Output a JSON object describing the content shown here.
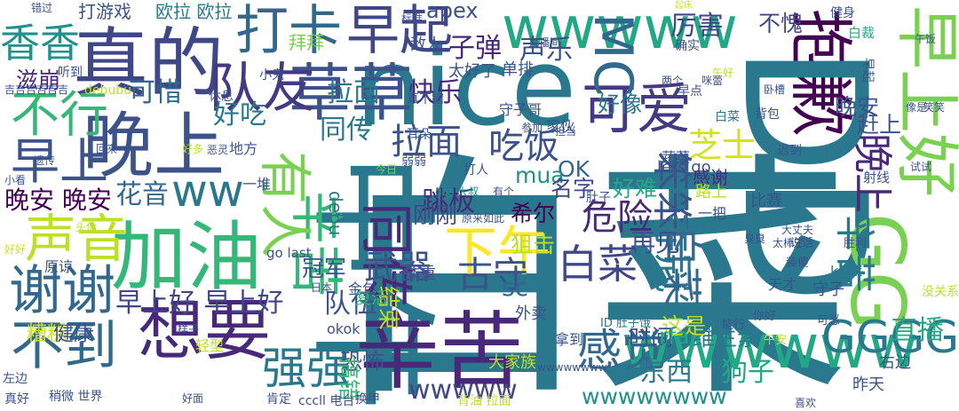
{
  "words": [
    {
      "text": "白菜",
      "color": "#2a788e"
    },
    {
      "text": "中午",
      "color": "#2a788e"
    },
    {
      "text": "nice",
      "color": "#2a788e"
    },
    {
      "text": "辛苦",
      "color": "#482878"
    },
    {
      "text": "真的",
      "color": "#3f4788"
    },
    {
      "text": "晚上",
      "color": "#3b528b"
    },
    {
      "text": "加油",
      "color": "#35b779"
    },
    {
      "text": "想要",
      "color": "#482878"
    },
    {
      "text": "草草",
      "color": "#3b528b"
    },
    {
      "text": "抱歉",
      "color": "#440154"
    },
    {
      "text": "早上好",
      "color": "#7ad151"
    },
    {
      "text": "DD",
      "color": "#2a788e"
    },
    {
      "text": "GG",
      "color": "#7ad151"
    },
    {
      "text": "wwwww",
      "color": "#22a884"
    },
    {
      "text": "wwwwww",
      "color": "#22a884"
    },
    {
      "text": "谢谢",
      "color": "#31688e"
    },
    {
      "text": "声音",
      "color": "#bddf26"
    },
    {
      "text": "不行",
      "color": "#35b779"
    },
    {
      "text": "早上",
      "color": "#3b528b"
    },
    {
      "text": "不到",
      "color": "#31688e"
    },
    {
      "text": "打卡",
      "color": "#31688e"
    },
    {
      "text": "早起",
      "color": "#3f4788"
    },
    {
      "text": "可爱",
      "color": "#443983"
    },
    {
      "text": "下午",
      "color": "#fde725"
    },
    {
      "text": "同传",
      "color": "#482878"
    },
    {
      "text": "辛苦",
      "color": "#35b779"
    },
    {
      "text": "有人",
      "color": "#7ad151"
    },
    {
      "text": "感觉",
      "color": "#31688e"
    },
    {
      "text": "GGGG",
      "color": "#2a788e"
    },
    {
      "text": "芝士",
      "color": "#d2e21b"
    },
    {
      "text": "MC",
      "color": "#31688e"
    },
    {
      "text": "队友",
      "color": "#443983"
    },
    {
      "text": "ww",
      "color": "#2a788e"
    },
    {
      "text": "强强",
      "color": "#2a788e"
    },
    {
      "text": "白菜",
      "color": "#3f4788"
    },
    {
      "text": "笨笨",
      "color": "#3b528b"
    },
    {
      "text": "夺冠",
      "color": "#2a788e"
    },
    {
      "text": "香香",
      "color": "#21918c"
    },
    {
      "text": "白菜",
      "color": "#31688e"
    },
    {
      "text": "辛苦",
      "color": "#2a788e"
    },
    {
      "text": "晚上",
      "color": "#482878"
    },
    {
      "text": "古守",
      "color": "#3b528b"
    },
    {
      "text": "危险",
      "color": "#482878"
    },
    {
      "text": "拉面",
      "color": "#3b528b"
    },
    {
      "text": "吃饭",
      "color": "#3b528b"
    },
    {
      "text": "厉害",
      "color": "#3f4788"
    },
    {
      "text": "快乐",
      "color": "#482878"
    },
    {
      "text": "声乐",
      "color": "#3b528b"
    },
    {
      "text": "子弹",
      "color": "#482878"
    },
    {
      "text": "不愧",
      "color": "#3f4788"
    },
    {
      "text": "可惜",
      "color": "#31688e"
    },
    {
      "text": "好吃",
      "color": "#2a788e"
    },
    {
      "text": "跳板",
      "color": "#482878"
    },
    {
      "text": "武器",
      "color": "#3b528b"
    },
    {
      "text": "早上好 早上好",
      "color": "#3f4788"
    },
    {
      "text": "晚安 晚安",
      "color": "#440154"
    },
    {
      "text": "花音",
      "color": "#31688e"
    },
    {
      "text": "同传",
      "color": "#2a788e"
    },
    {
      "text": "好像",
      "color": "#2a788e"
    },
    {
      "text": "OK",
      "color": "#31688e"
    },
    {
      "text": "mua",
      "color": "#21918c"
    },
    {
      "text": "apex",
      "color": "#3b528b"
    },
    {
      "text": "sc",
      "color": "#31688e"
    },
    {
      "text": "直播",
      "color": "#22a884"
    },
    {
      "text": "队伍",
      "color": "#3b528b"
    },
    {
      "text": "糟糕",
      "color": "#d2e21b"
    },
    {
      "text": "健康",
      "color": "#3b528b"
    },
    {
      "text": "恐怖",
      "color": "#3b528b"
    },
    {
      "text": "搞错",
      "color": "#35b779"
    },
    {
      "text": "狗子",
      "color": "#22a884"
    },
    {
      "text": "东西",
      "color": "#2a788e"
    },
    {
      "text": "再见",
      "color": "#3b528b"
    },
    {
      "text": "好难",
      "color": "#22a884"
    },
    {
      "text": "名字",
      "color": "#3f4788"
    },
    {
      "text": "希尔",
      "color": "#440154"
    },
    {
      "text": "狙击",
      "color": "#bddf26"
    },
    {
      "text": "结束",
      "color": "#bddf26"
    },
    {
      "text": "刚刚",
      "color": "#3f4788"
    },
    {
      "text": "维生素",
      "color": "#2a788e"
    },
    {
      "text": "这是",
      "color": "#bddf26"
    },
    {
      "text": "时间",
      "color": "#3b528b"
    },
    {
      "text": "rfa",
      "color": "#22a884"
    },
    {
      "text": "wwwwwwww",
      "color": "#21918c"
    },
    {
      "text": "wwwww",
      "color": "#3f4788"
    },
    {
      "text": "冠军",
      "color": "#3b528b"
    },
    {
      "text": "滋崩",
      "color": "#482878"
    },
    {
      "text": "晚安",
      "color": "#3b528b"
    },
    {
      "text": "赶上",
      "color": "#3b528b"
    },
    {
      "text": "拉面",
      "color": "#2a788e"
    },
    {
      "text": "拜拜",
      "color": "#7ad151"
    },
    {
      "text": "打游戏",
      "color": "#3b528b"
    },
    {
      "text": "欧拉 欧拉",
      "color": "#2a788e"
    },
    {
      "text": "debu",
      "color": "#2a788e"
    },
    {
      "text": "lets go",
      "color": "#3b528b"
    },
    {
      "text": "感谢",
      "color": "#482878"
    },
    {
      "text": "比赛",
      "color": "#3b528b"
    },
    {
      "text": "右边",
      "color": "#3b528b"
    },
    {
      "text": "昨天",
      "color": "#3b528b"
    },
    {
      "text": "敌人",
      "color": "#3b528b"
    },
    {
      "text": "太好了",
      "color": "#3b528b"
    },
    {
      "text": "单排",
      "color": "#3b528b"
    },
    {
      "text": "金包",
      "color": "#3b528b"
    },
    {
      "text": "体重",
      "color": "#3b528b"
    },
    {
      "text": "复活",
      "color": "#35b779"
    },
    {
      "text": "守子",
      "color": "#3b528b"
    },
    {
      "text": "天才",
      "color": "#3b528b"
    },
    {
      "text": "拿到",
      "color": "#3b528b"
    },
    {
      "text": "外卖",
      "color": "#3b528b"
    },
    {
      "text": "大家族",
      "color": "#bddf26"
    },
    {
      "text": "okok",
      "color": "#3b528b"
    },
    {
      "text": "原谅",
      "color": "#3b528b"
    },
    {
      "text": "go last",
      "color": "#3b528b"
    },
    {
      "text": "轻型",
      "color": "#bddf26"
    },
    {
      "text": "地方",
      "color": "#3b528b"
    },
    {
      "text": "蔬菜",
      "color": "#3b528b"
    },
    {
      "text": "一把",
      "color": "#3b528b"
    },
    {
      "text": "守子哥",
      "color": "#3b528b"
    },
    {
      "text": "家伙",
      "color": "#3b528b"
    },
    {
      "text": "肚子",
      "color": "#3b528b"
    },
    {
      "text": "打人",
      "color": "#3b528b"
    },
    {
      "text": "gas 大叔",
      "color": "#21918c"
    },
    {
      "text": "有个",
      "color": "#3b528b"
    },
    {
      "text": "原来如此",
      "color": "#3b528b"
    },
    {
      "text": "ID 肚子饿",
      "color": "#2a788e"
    },
    {
      "text": "能行",
      "color": "#3b528b"
    },
    {
      "text": "你好",
      "color": "#3b528b"
    },
    {
      "text": "可恶",
      "color": "#3b528b"
    },
    {
      "text": "午安",
      "color": "#bddf26"
    },
    {
      "text": "kksk",
      "color": "#2a788e"
    },
    {
      "text": "没关系",
      "color": "#bddf26"
    },
    {
      "text": "胜利",
      "color": "#3b528b"
    },
    {
      "text": "说话",
      "color": "#3b528b"
    },
    {
      "text": "装傻",
      "color": "#3b528b"
    },
    {
      "text": "射线",
      "color": "#3b528b"
    },
    {
      "text": "试试",
      "color": "#3b528b"
    },
    {
      "text": "迟到",
      "color": "#3b528b"
    },
    {
      "text": "背包",
      "color": "#3b528b"
    },
    {
      "text": "早点",
      "color": "#3b528b"
    },
    {
      "text": "确实",
      "color": "#3b528b"
    },
    {
      "text": "标准",
      "color": "#3b528b"
    },
    {
      "text": "直播间",
      "color": "#3b528b"
    },
    {
      "text": "起床",
      "color": "#d2e21b"
    },
    {
      "text": "错过",
      "color": "#3b528b"
    },
    {
      "text": "午饭",
      "color": "#3b528b"
    },
    {
      "text": "吉吉吉吉吉吉",
      "color": "#3b528b"
    },
    {
      "text": "debubu",
      "color": "#bddf26"
    },
    {
      "text": "听到",
      "color": "#3b528b"
    },
    {
      "text": "休息",
      "color": "#3b528b"
    },
    {
      "text": "小鬼",
      "color": "#3b528b"
    },
    {
      "text": "真不错",
      "color": "#3b528b"
    },
    {
      "text": "耳朵",
      "color": "#3b528b"
    },
    {
      "text": "参加",
      "color": "#3b528b"
    },
    {
      "text": "今日",
      "color": "#7ad151"
    },
    {
      "text": "弱弱",
      "color": "#3b528b"
    },
    {
      "text": "一堆",
      "color": "#3b528b"
    },
    {
      "text": "回来",
      "color": "#3b528b"
    },
    {
      "text": "好多",
      "color": "#bddf26"
    },
    {
      "text": "恶灵",
      "color": "#3b528b"
    },
    {
      "text": "遗传",
      "color": "#3b528b"
    },
    {
      "text": "小看",
      "color": "#3b528b"
    },
    {
      "text": "好好",
      "color": "#d2e21b"
    },
    {
      "text": "左边",
      "color": "#3b528b"
    },
    {
      "text": "真好",
      "color": "#3b528b"
    },
    {
      "text": "稍微 世界",
      "color": "#3b528b"
    },
    {
      "text": "肯定",
      "color": "#3b528b"
    },
    {
      "text": "cccll 电台",
      "color": "#3b528b"
    },
    {
      "text": "换甲",
      "color": "#3b528b"
    },
    {
      "text": "背油 拉面",
      "color": "#bddf26"
    },
    {
      "text": "喜欢",
      "color": "#3b528b"
    },
    {
      "text": "好面",
      "color": "#3b528b"
    },
    {
      "text": "头像",
      "color": "#bddf26"
    },
    {
      "text": "像是",
      "color": "#3b528b"
    },
    {
      "text": "笑笑",
      "color": "#3b528b"
    },
    {
      "text": "白菜",
      "color": "#2a788e"
    },
    {
      "text": "路上",
      "color": "#bddf26"
    },
    {
      "text": "白裁",
      "color": "#22a884"
    },
    {
      "text": "早起",
      "color": "#3b528b"
    },
    {
      "text": "健身",
      "color": "#3b528b"
    },
    {
      "text": "太棒了",
      "color": "#3b528b"
    },
    {
      "text": "臭臭",
      "color": "#3b528b"
    },
    {
      "text": "大丈夫",
      "color": "#3b528b"
    },
    {
      "text": "担当",
      "color": "#3b528b"
    },
    {
      "text": "咪蕾",
      "color": "#3b528b"
    },
    {
      "text": "午好",
      "color": "#bddf26"
    },
    {
      "text": "两个",
      "color": "#3b528b"
    },
    {
      "text": "卧槽",
      "color": "#3b528b"
    },
    {
      "text": "样子",
      "color": "#3b528b"
    },
    {
      "text": "wwwwwwww",
      "color": "#3b528b"
    },
    {
      "text": "日本",
      "color": "#3b528b"
    },
    {
      "text": "好的",
      "color": "#bddf26"
    },
    {
      "text": "战术",
      "color": "#bddf26"
    },
    {
      "text": "小说",
      "color": "#bddf26"
    }
  ]
}
